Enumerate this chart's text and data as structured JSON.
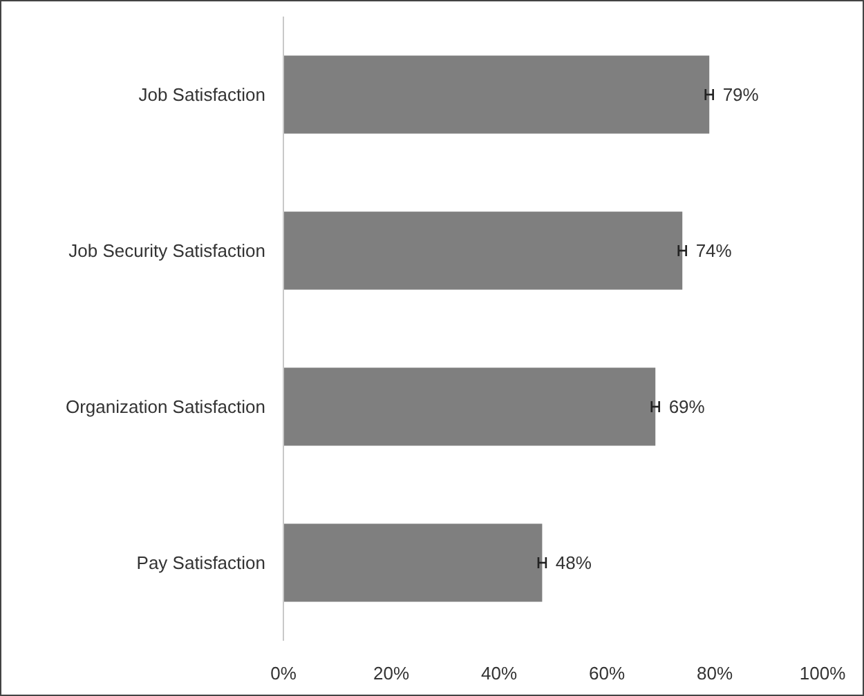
{
  "chart_data": {
    "type": "bar",
    "orientation": "horizontal",
    "categories": [
      "Job Satisfaction",
      "Job Security Satisfaction",
      "Organization Satisfaction",
      "Pay Satisfaction"
    ],
    "values": [
      79,
      74,
      69,
      48
    ],
    "errors": [
      0.7,
      0.7,
      0.7,
      0.7
    ],
    "value_labels": [
      "79%",
      "74%",
      "69%",
      "48%"
    ],
    "color": "#7f7f7f",
    "xlim": [
      0,
      100
    ],
    "xticks": [
      {
        "value": 0,
        "label": "0%"
      },
      {
        "value": 20,
        "label": "20%"
      },
      {
        "value": 40,
        "label": "40%"
      },
      {
        "value": 60,
        "label": "60%"
      },
      {
        "value": 80,
        "label": "80%"
      },
      {
        "value": 100,
        "label": "100%"
      }
    ],
    "grid": false
  }
}
